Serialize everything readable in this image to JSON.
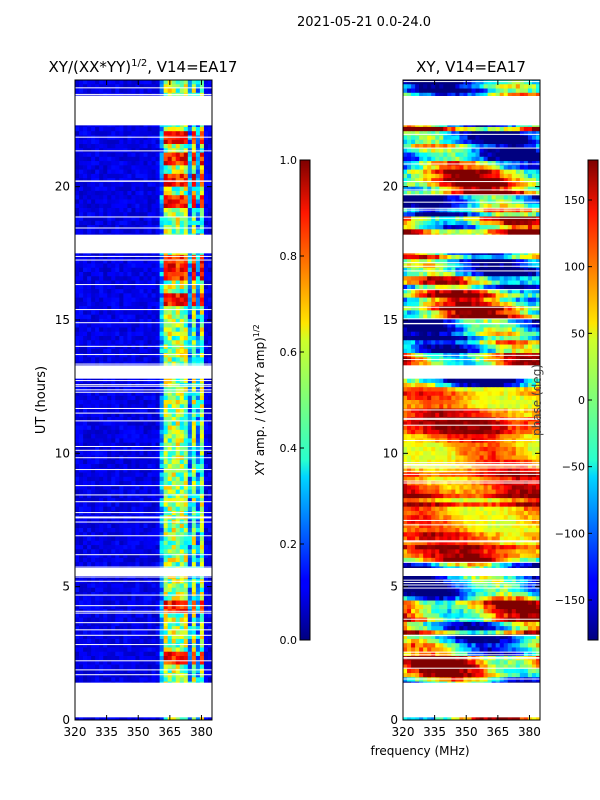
{
  "figure_title": "2021-05-21 0.0-24.0",
  "chart_data": [
    {
      "type": "heatmap",
      "title": "XY/(XX*YY)^1/2, V14=EA17",
      "title_main": "XY/(XX*YY)",
      "title_exp": "1/2",
      "title_tail": ", V14=EA17",
      "xlabel": "",
      "ylabel": "UT (hours)",
      "xlim": [
        320,
        385
      ],
      "ylim": [
        0,
        24
      ],
      "xticks": [
        320,
        335,
        350,
        365,
        380
      ],
      "yticks": [
        0,
        5,
        10,
        15,
        20
      ],
      "colormap": "jet",
      "colorbar": {
        "label": "XY amp. / (XX*YY amp)^1/2",
        "label_main": "XY amp. / (XX*YY amp)",
        "label_exp": "1/2",
        "range": [
          0,
          1
        ],
        "ticks": [
          "0.0",
          "0.2",
          "0.4",
          "0.6",
          "0.8",
          "1.0"
        ]
      },
      "blank_ut_ranges": [
        [
          0.1,
          1.4
        ],
        [
          22.3,
          23.4
        ],
        [
          17.5,
          18.2
        ],
        [
          12.8,
          13.3
        ],
        [
          5.4,
          5.7
        ]
      ],
      "bright_freq_band_mhz": [
        361,
        381
      ],
      "bright_channels_mhz": [
        364,
        368,
        372,
        376,
        380
      ],
      "high_value_ut_hours": [
        2.3,
        4.2,
        15.7,
        16.8,
        17.2,
        19.5,
        20.3,
        21.0,
        21.8
      ]
    },
    {
      "type": "heatmap",
      "title": "XY, V14=EA17",
      "xlabel": "frequency (MHz)",
      "ylabel": "",
      "xlim": [
        320,
        385
      ],
      "ylim": [
        0,
        24
      ],
      "xticks": [
        320,
        335,
        350,
        365,
        380
      ],
      "yticks": [
        0,
        5,
        10,
        15,
        20
      ],
      "colormap": "jet",
      "colorbar": {
        "label": "phase (deg)",
        "range": [
          -180,
          180
        ],
        "ticks": [
          "−150",
          "−100",
          "−50",
          "0",
          "50",
          "100",
          "150"
        ]
      },
      "blank_ut_ranges": [
        [
          0.1,
          1.4
        ],
        [
          22.3,
          23.4
        ],
        [
          17.5,
          18.2
        ],
        [
          12.8,
          13.3
        ],
        [
          5.4,
          5.7
        ]
      ]
    }
  ]
}
